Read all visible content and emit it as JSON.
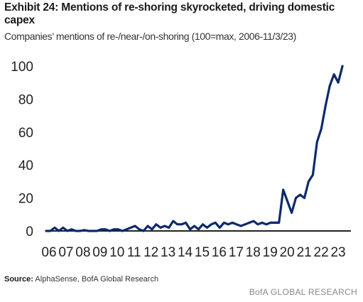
{
  "header": {
    "title": "Exhibit 24: Mentions of re-shoring skyrocketed, driving domestic capex",
    "subtitle": "Companies’ mentions of re-/near-/on-shoring (100=max, 2006-11/3/23)"
  },
  "footer": {
    "source_label": "Source:",
    "source_text": "AlphaSense, BofA Global Research",
    "brand": "BofA GLOBAL RESEARCH"
  },
  "chart_data": {
    "type": "line",
    "title": "Exhibit 24: Mentions of re-shoring skyrocketed, driving domestic capex",
    "subtitle": "Companies’ mentions of re-/near-/on-shoring (100=max, 2006-11/3/23)",
    "xlabel": "",
    "ylabel": "",
    "ylim": [
      0,
      100
    ],
    "yticks": [
      0,
      20,
      40,
      60,
      80,
      100
    ],
    "xticks": [
      "06",
      "07",
      "08",
      "09",
      "10",
      "11",
      "12",
      "13",
      "14",
      "15",
      "16",
      "17",
      "18",
      "19",
      "20",
      "21",
      "22",
      "23"
    ],
    "grid": false,
    "legend": "none",
    "color": "#0d2a6b",
    "series": [
      {
        "x": [
          2006.0,
          2006.25,
          2006.5,
          2006.75,
          2007.0,
          2007.25,
          2007.5,
          2007.75,
          2008.0,
          2008.25,
          2008.5,
          2008.75,
          2009.0,
          2009.25,
          2009.5,
          2009.75,
          2010.0,
          2010.25,
          2010.5,
          2010.75,
          2011.0,
          2011.25,
          2011.5,
          2011.75,
          2012.0,
          2012.25,
          2012.5,
          2012.75,
          2013.0,
          2013.25,
          2013.5,
          2013.75,
          2014.0,
          2014.25,
          2014.5,
          2014.75,
          2015.0,
          2015.25,
          2015.5,
          2015.75,
          2016.0,
          2016.25,
          2016.5,
          2016.75,
          2017.0,
          2017.25,
          2017.5,
          2017.75,
          2018.0,
          2018.25,
          2018.5,
          2018.75,
          2019.0,
          2019.25,
          2019.5,
          2019.75,
          2020.0,
          2020.25,
          2020.5,
          2020.75,
          2021.0,
          2021.25,
          2021.5,
          2021.75,
          2022.0,
          2022.25,
          2022.5,
          2022.75,
          2023.0,
          2023.25,
          2023.5,
          2023.75
        ],
        "values": [
          0,
          0,
          2,
          0,
          2,
          0,
          1,
          0,
          0,
          0.5,
          0,
          0,
          0,
          1,
          1,
          0,
          1,
          1,
          0,
          1,
          2,
          3,
          1,
          0,
          3,
          1,
          4,
          2,
          3,
          2,
          6,
          4,
          4,
          5,
          1,
          3,
          1,
          4,
          2,
          4,
          5,
          2,
          5,
          4,
          5,
          4,
          3,
          4,
          5,
          6,
          4,
          5,
          4,
          5,
          5,
          5,
          25,
          18,
          11,
          20,
          22,
          20,
          30,
          34,
          54,
          62,
          76,
          88,
          95,
          90,
          100,
          null
        ]
      }
    ]
  }
}
